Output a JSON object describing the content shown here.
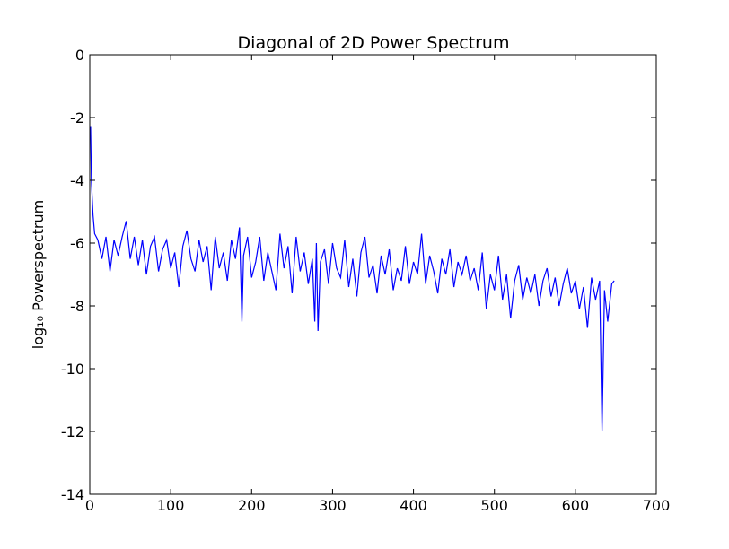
{
  "chart_data": {
    "type": "line",
    "title": "Diagonal of 2D Power Spectrum",
    "ylabel": "log₁₀ Powerspectrum",
    "x": [
      1,
      2,
      4,
      6,
      10,
      15,
      20,
      25,
      30,
      35,
      40,
      45,
      50,
      55,
      60,
      65,
      70,
      75,
      80,
      85,
      90,
      95,
      100,
      105,
      110,
      115,
      120,
      125,
      130,
      135,
      140,
      145,
      150,
      155,
      160,
      165,
      170,
      175,
      180,
      185,
      188,
      190,
      195,
      200,
      205,
      210,
      215,
      220,
      225,
      230,
      235,
      240,
      245,
      250,
      255,
      260,
      265,
      270,
      275,
      278,
      280,
      282,
      285,
      290,
      295,
      300,
      305,
      310,
      315,
      320,
      325,
      330,
      335,
      340,
      345,
      350,
      355,
      360,
      365,
      370,
      375,
      380,
      385,
      390,
      395,
      400,
      405,
      410,
      415,
      420,
      425,
      430,
      435,
      440,
      445,
      450,
      455,
      460,
      465,
      470,
      475,
      480,
      485,
      490,
      495,
      500,
      505,
      510,
      515,
      520,
      525,
      530,
      535,
      540,
      545,
      550,
      555,
      560,
      565,
      570,
      575,
      580,
      585,
      590,
      595,
      600,
      605,
      610,
      615,
      620,
      625,
      630,
      633,
      636,
      640,
      645,
      648
    ],
    "series": [
      {
        "color": "#0000ff",
        "values": [
          -2.3,
          -4.0,
          -5.1,
          -5.7,
          -5.9,
          -6.5,
          -5.8,
          -6.9,
          -5.9,
          -6.4,
          -5.8,
          -5.3,
          -6.5,
          -5.8,
          -6.7,
          -5.9,
          -7.0,
          -6.1,
          -5.8,
          -6.9,
          -6.2,
          -5.9,
          -6.8,
          -6.3,
          -7.4,
          -6.1,
          -5.6,
          -6.5,
          -6.9,
          -5.9,
          -6.6,
          -6.1,
          -7.5,
          -5.8,
          -6.8,
          -6.3,
          -7.2,
          -5.9,
          -6.5,
          -5.5,
          -8.5,
          -6.4,
          -5.8,
          -7.1,
          -6.6,
          -5.8,
          -7.2,
          -6.3,
          -6.9,
          -7.5,
          -5.7,
          -6.8,
          -6.1,
          -7.6,
          -5.8,
          -6.9,
          -6.3,
          -7.3,
          -6.5,
          -8.5,
          -6.0,
          -8.8,
          -6.6,
          -6.2,
          -7.3,
          -6.0,
          -6.8,
          -7.1,
          -5.9,
          -7.4,
          -6.5,
          -7.7,
          -6.3,
          -5.8,
          -7.1,
          -6.7,
          -7.6,
          -6.4,
          -7.0,
          -6.2,
          -7.5,
          -6.8,
          -7.2,
          -6.1,
          -7.3,
          -6.6,
          -7.0,
          -5.7,
          -7.3,
          -6.4,
          -6.9,
          -7.6,
          -6.5,
          -7.0,
          -6.2,
          -7.4,
          -6.6,
          -7.0,
          -6.4,
          -7.2,
          -6.8,
          -7.5,
          -6.3,
          -8.1,
          -7.0,
          -7.5,
          -6.4,
          -7.8,
          -7.0,
          -8.4,
          -7.2,
          -6.7,
          -7.8,
          -7.1,
          -7.6,
          -7.0,
          -8.0,
          -7.2,
          -6.8,
          -7.7,
          -7.1,
          -8.0,
          -7.3,
          -6.8,
          -7.6,
          -7.2,
          -8.1,
          -7.4,
          -8.7,
          -7.1,
          -7.8,
          -7.2,
          -12.0,
          -7.5,
          -8.5,
          -7.3,
          -7.2
        ]
      }
    ],
    "xlim": [
      0,
      700
    ],
    "xticks": [
      0,
      100,
      200,
      300,
      400,
      500,
      600,
      700
    ],
    "ylim": [
      -14,
      0
    ],
    "yticks": [
      -14,
      -12,
      -10,
      -8,
      -6,
      -4,
      -2,
      0
    ]
  }
}
